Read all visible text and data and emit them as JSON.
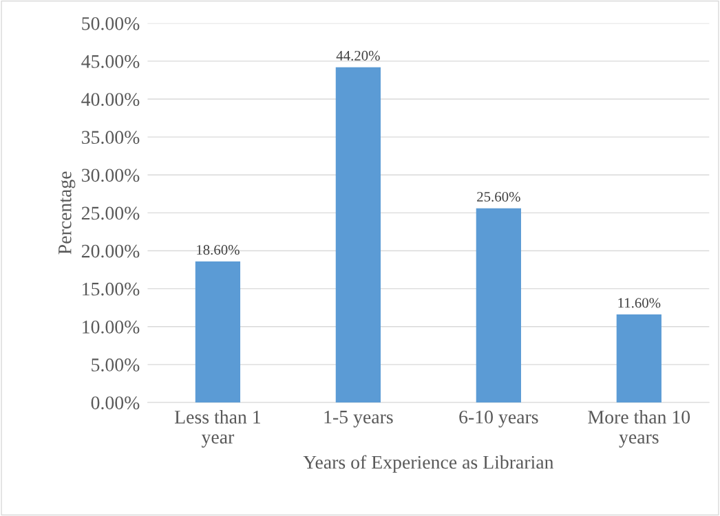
{
  "chart_data": {
    "type": "bar",
    "xlabel": "Years of Experience as Librarian",
    "ylabel": "Percentage",
    "categories": [
      "Less than 1 year",
      "1-5 years",
      "6-10 years",
      "More than 10 years"
    ],
    "values": [
      18.6,
      44.2,
      25.6,
      11.6
    ],
    "value_labels": [
      "18.60%",
      "44.20%",
      "25.60%",
      "11.60%"
    ],
    "color": "#5b9bd5",
    "ylim": [
      0,
      50
    ],
    "yticks": [
      {
        "value": 0,
        "label": "0.00%"
      },
      {
        "value": 5,
        "label": "5.00%"
      },
      {
        "value": 10,
        "label": "10.00%"
      },
      {
        "value": 15,
        "label": "15.00%"
      },
      {
        "value": 20,
        "label": "20.00%"
      },
      {
        "value": 25,
        "label": "25.00%"
      },
      {
        "value": 30,
        "label": "30.00%"
      },
      {
        "value": 35,
        "label": "35.00%"
      },
      {
        "value": 40,
        "label": "40.00%"
      },
      {
        "value": 45,
        "label": "45.00%"
      },
      {
        "value": 50,
        "label": "50.00%"
      }
    ],
    "grid": "y"
  }
}
